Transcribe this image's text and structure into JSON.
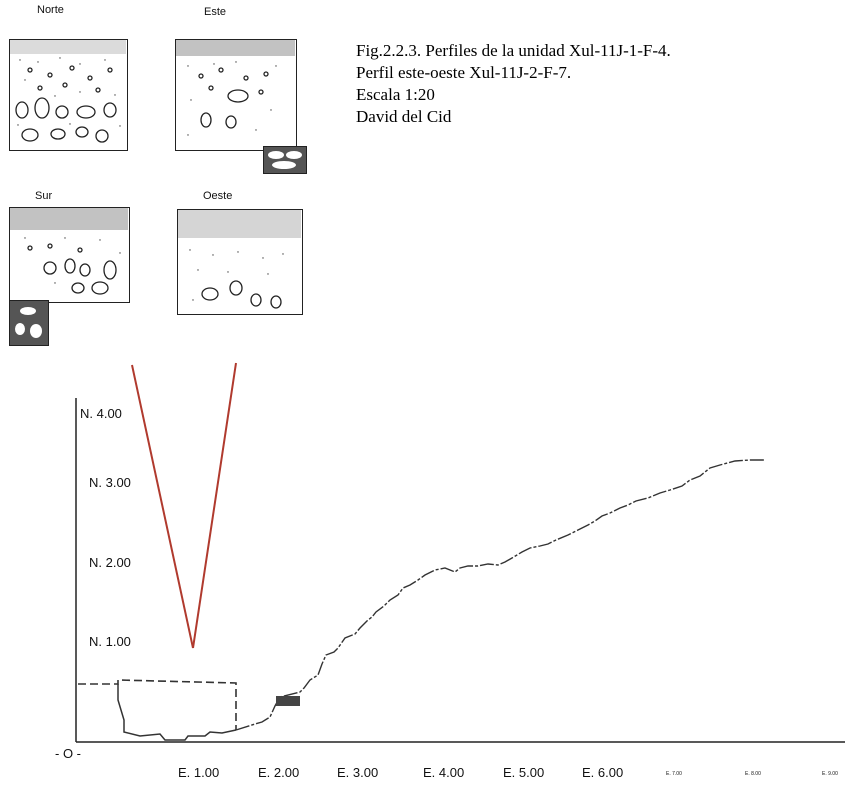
{
  "panels": {
    "norte": "Norte",
    "este": "Este",
    "sur": "Sur",
    "oeste": "Oeste"
  },
  "caption": {
    "line1": "Fig.2.2.3. Perfiles de la unidad Xul-11J-1-F-4.",
    "line2": "Perfil  este-oeste Xul-11J-2-F-7.",
    "line3": "Escala 1:20",
    "line4": "David del Cid"
  },
  "profile": {
    "y_labels": [
      "N. 4.00",
      "N. 3.00",
      "N. 2.00",
      "N. 1.00",
      "- O -"
    ],
    "x_labels": [
      "E. 1.00",
      "E. 2.00",
      "E. 3.00",
      "E. 4.00",
      "E. 5.00",
      "E. 6.00",
      "E. 7.00",
      "E. 8.00",
      "E. 9.00"
    ]
  },
  "colors": {
    "ink": "#222222",
    "red_line": "#b03a2e"
  }
}
